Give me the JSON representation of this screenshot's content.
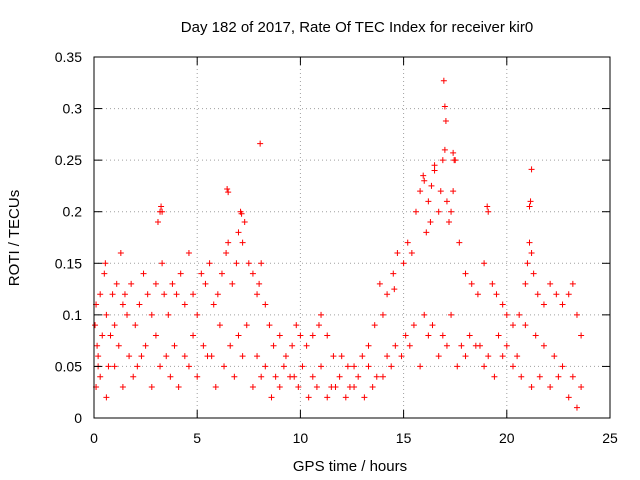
{
  "chart_data": {
    "type": "scatter",
    "title": "Day 182 of 2017, Rate Of TEC Index for receiver kir0",
    "xlabel": "GPS time / hours",
    "ylabel": "ROTI / TECUs",
    "xlim": [
      0,
      25
    ],
    "ylim": [
      0,
      0.35
    ],
    "xticks": [
      0,
      5,
      10,
      15,
      20,
      25
    ],
    "yticks": [
      0,
      0.05,
      0.1,
      0.15,
      0.2,
      0.25,
      0.3,
      0.35
    ],
    "grid": true,
    "marker": "plus",
    "series": [
      {
        "name": "ROTI kir0",
        "color": "#ff0000",
        "x": [
          0.05,
          0.1,
          0.15,
          0.2,
          0.3,
          0.4,
          0.5,
          0.55,
          0.6,
          0.8,
          0.9,
          1.0,
          1.1,
          1.3,
          1.4,
          1.5,
          1.6,
          1.8,
          2.0,
          2.2,
          2.4,
          2.6,
          2.8,
          3.0,
          3.1,
          3.2,
          3.3,
          3.4,
          3.6,
          3.8,
          4.0,
          4.2,
          4.4,
          4.6,
          4.8,
          5.0,
          5.2,
          5.4,
          5.6,
          5.8,
          6.0,
          6.2,
          6.4,
          6.5,
          6.7,
          6.9,
          7.0,
          7.1,
          7.2,
          7.3,
          7.5,
          7.7,
          7.9,
          8.0,
          8.1,
          8.3,
          8.5,
          8.7,
          9.0,
          9.3,
          9.6,
          9.8,
          10.0,
          10.3,
          10.6,
          10.9,
          11.0,
          11.3,
          11.6,
          12.0,
          12.3,
          12.6,
          13.0,
          13.3,
          13.6,
          14.0,
          14.2,
          14.5,
          14.7,
          15.0,
          15.2,
          15.4,
          15.6,
          15.8,
          16.0,
          16.1,
          16.2,
          16.3,
          16.5,
          16.7,
          16.8,
          16.9,
          17.0,
          17.1,
          17.2,
          17.3,
          17.4,
          17.5,
          17.7,
          18.0,
          18.3,
          18.6,
          18.9,
          19.1,
          19.3,
          19.5,
          19.8,
          20.0,
          20.3,
          20.6,
          20.9,
          21.0,
          21.1,
          21.2,
          21.3,
          21.5,
          21.8,
          22.1,
          22.4,
          22.7,
          23.0,
          23.2,
          23.4,
          23.6,
          0.1,
          0.3,
          0.6,
          1.0,
          1.4,
          1.9,
          2.3,
          2.8,
          3.2,
          3.7,
          4.1,
          4.6,
          5.0,
          5.5,
          5.9,
          6.3,
          6.8,
          7.2,
          7.7,
          8.1,
          8.6,
          9.0,
          9.5,
          9.9,
          10.4,
          10.8,
          11.3,
          11.7,
          12.2,
          12.6,
          13.1,
          13.5,
          14.0,
          14.4,
          14.9,
          15.3,
          15.8,
          16.2,
          16.7,
          17.1,
          17.6,
          18.0,
          18.5,
          18.9,
          19.4,
          19.8,
          20.3,
          20.7,
          21.2,
          21.6,
          22.1,
          22.5,
          23.0,
          23.4,
          0.2,
          0.7,
          1.2,
          1.7,
          2.1,
          2.5,
          3.0,
          3.5,
          3.9,
          4.4,
          4.8,
          5.3,
          5.7,
          6.1,
          6.6,
          7.0,
          7.4,
          7.9,
          8.3,
          8.8,
          9.2,
          9.7,
          10.1,
          10.6,
          11.0,
          11.5,
          11.9,
          12.4,
          12.8,
          13.3,
          13.7,
          14.2,
          14.6,
          15.1,
          15.5,
          16.0,
          16.4,
          16.9,
          17.3,
          17.8,
          18.2,
          18.7,
          19.1,
          19.6,
          20.0,
          20.5,
          20.9,
          21.4,
          21.8,
          22.3,
          22.7,
          23.2,
          23.6,
          3.25,
          3.3,
          6.45,
          6.5,
          7.15,
          8.05,
          16.95,
          17.0,
          17.05,
          16.5,
          17.4,
          17.45,
          19.05,
          21.2,
          21.15,
          21.1,
          15.95,
          16.35,
          14.55,
          13.85
        ],
        "y": [
          0.09,
          0.11,
          0.07,
          0.05,
          0.12,
          0.08,
          0.14,
          0.15,
          0.1,
          0.08,
          0.12,
          0.09,
          0.13,
          0.16,
          0.11,
          0.12,
          0.1,
          0.13,
          0.09,
          0.11,
          0.14,
          0.12,
          0.1,
          0.13,
          0.19,
          0.2,
          0.15,
          0.12,
          0.1,
          0.13,
          0.12,
          0.14,
          0.11,
          0.16,
          0.12,
          0.1,
          0.14,
          0.13,
          0.15,
          0.11,
          0.12,
          0.14,
          0.16,
          0.17,
          0.13,
          0.15,
          0.18,
          0.2,
          0.17,
          0.19,
          0.15,
          0.14,
          0.12,
          0.13,
          0.15,
          0.11,
          0.09,
          0.07,
          0.08,
          0.06,
          0.07,
          0.09,
          0.08,
          0.07,
          0.08,
          0.09,
          0.1,
          0.08,
          0.06,
          0.06,
          0.05,
          0.05,
          0.06,
          0.07,
          0.09,
          0.1,
          0.12,
          0.14,
          0.16,
          0.15,
          0.17,
          0.16,
          0.2,
          0.22,
          0.23,
          0.18,
          0.21,
          0.19,
          0.24,
          0.2,
          0.22,
          0.25,
          0.26,
          0.21,
          0.19,
          0.2,
          0.22,
          0.25,
          0.17,
          0.14,
          0.13,
          0.12,
          0.15,
          0.2,
          0.13,
          0.12,
          0.11,
          0.1,
          0.09,
          0.1,
          0.13,
          0.15,
          0.17,
          0.16,
          0.14,
          0.12,
          0.11,
          0.13,
          0.12,
          0.11,
          0.12,
          0.13,
          0.1,
          0.08,
          0.03,
          0.04,
          0.02,
          0.05,
          0.03,
          0.04,
          0.06,
          0.03,
          0.05,
          0.04,
          0.03,
          0.05,
          0.04,
          0.06,
          0.03,
          0.05,
          0.04,
          0.06,
          0.03,
          0.04,
          0.02,
          0.03,
          0.04,
          0.03,
          0.02,
          0.03,
          0.02,
          0.03,
          0.02,
          0.03,
          0.02,
          0.03,
          0.04,
          0.05,
          0.06,
          0.07,
          0.05,
          0.08,
          0.06,
          0.07,
          0.05,
          0.06,
          0.07,
          0.05,
          0.04,
          0.06,
          0.05,
          0.04,
          0.03,
          0.04,
          0.03,
          0.04,
          0.02,
          0.01,
          0.06,
          0.05,
          0.07,
          0.06,
          0.05,
          0.07,
          0.08,
          0.06,
          0.07,
          0.06,
          0.08,
          0.07,
          0.06,
          0.09,
          0.07,
          0.08,
          0.09,
          0.06,
          0.05,
          0.04,
          0.05,
          0.04,
          0.05,
          0.04,
          0.05,
          0.03,
          0.04,
          0.03,
          0.04,
          0.05,
          0.04,
          0.06,
          0.07,
          0.08,
          0.09,
          0.1,
          0.09,
          0.08,
          0.1,
          0.07,
          0.08,
          0.07,
          0.06,
          0.08,
          0.07,
          0.06,
          0.09,
          0.08,
          0.07,
          0.06,
          0.05,
          0.04,
          0.03,
          0.205,
          0.2,
          0.222,
          0.219,
          0.198,
          0.266,
          0.327,
          0.302,
          0.288,
          0.245,
          0.257,
          0.25,
          0.205,
          0.241,
          0.21,
          0.205,
          0.235,
          0.225,
          0.125,
          0.13
        ]
      }
    ]
  }
}
